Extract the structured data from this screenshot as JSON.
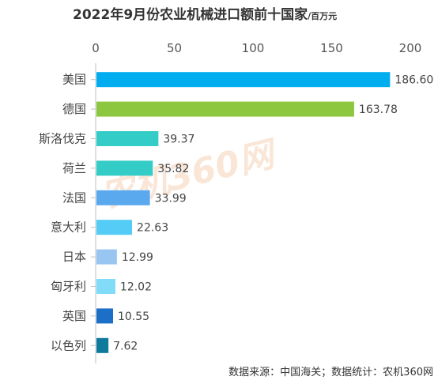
{
  "chart_data": {
    "type": "bar",
    "orientation": "horizontal",
    "title": "2022年9月份农业机械进口额前十国家",
    "unit": "/百万元",
    "categories": [
      "美国",
      "德国",
      "斯洛伐克",
      "荷兰",
      "法国",
      "意大利",
      "日本",
      "匈牙利",
      "英国",
      "以色列"
    ],
    "values": [
      186.6,
      163.78,
      39.37,
      35.82,
      33.99,
      22.63,
      12.99,
      12.02,
      10.55,
      7.62
    ],
    "value_labels": [
      "186.60",
      "163.78",
      "39.37",
      "35.82",
      "33.99",
      "22.63",
      "12.99",
      "12.02",
      "10.55",
      "7.62"
    ],
    "colors": [
      "#00aeef",
      "#8dc63f",
      "#33ccc6",
      "#33ccc6",
      "#5aa9ee",
      "#55ccf5",
      "#99c5f3",
      "#80dcf8",
      "#1b6fc6",
      "#0f7a9c"
    ],
    "xlim": [
      0,
      200
    ],
    "xticks": [
      "0",
      "50",
      "100",
      "150",
      "200"
    ],
    "xtick_values": [
      0,
      50,
      100,
      150,
      200
    ],
    "axis_position": "top",
    "grid": false
  },
  "source": "数据来源：中国海关；数据统计：农机360网",
  "watermark": "农机360网"
}
